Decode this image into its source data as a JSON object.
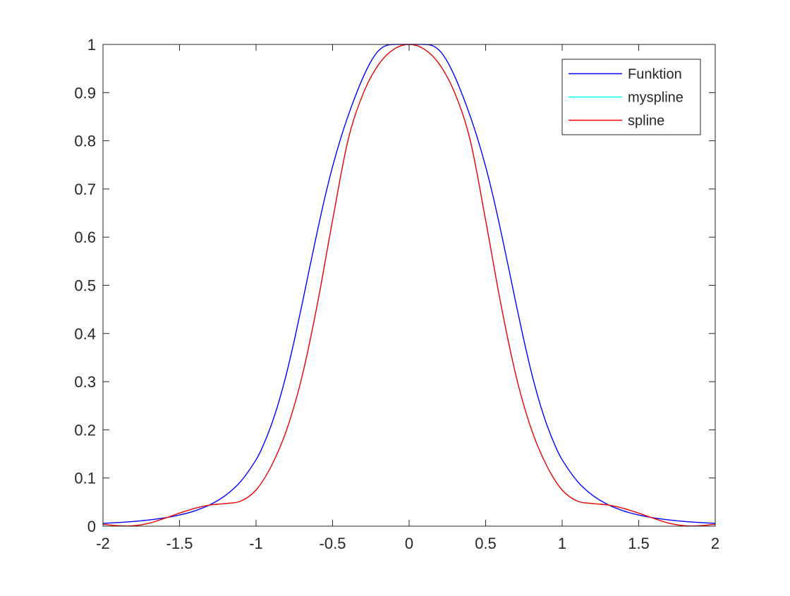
{
  "chart_data": {
    "type": "line",
    "title": "",
    "xlabel": "",
    "ylabel": "",
    "xlim": [
      -2,
      2
    ],
    "ylim": [
      0,
      1
    ],
    "grid": false,
    "box": true,
    "legend_position": "top-right",
    "x_ticks": [
      -2,
      -1.5,
      -1,
      -0.5,
      0,
      0.5,
      1,
      1.5,
      2
    ],
    "x_tick_labels": [
      "-2",
      "-1.5",
      "-1",
      "-0.5",
      "0",
      "0.5",
      "1",
      "1.5",
      "2"
    ],
    "y_ticks": [
      0,
      0.1,
      0.2,
      0.3,
      0.4,
      0.5,
      0.6,
      0.7,
      0.8,
      0.9,
      1
    ],
    "y_tick_labels": [
      "0",
      "0.1",
      "0.2",
      "0.3",
      "0.4",
      "0.5",
      "0.6",
      "0.7",
      "0.8",
      "0.9",
      "1"
    ],
    "series": [
      {
        "name": "Funktion",
        "color": "#0000ff",
        "x": [
          -2,
          -1.9,
          -1.8,
          -1.7,
          -1.6,
          -1.5,
          -1.4,
          -1.3,
          -1.2,
          -1.1,
          -1,
          -0.95,
          -0.9,
          -0.85,
          -0.8,
          -0.75,
          -0.7,
          -0.65,
          -0.6,
          -0.55,
          -0.5,
          -0.45,
          -0.4,
          -0.35,
          -0.3,
          -0.25,
          -0.2,
          -0.15,
          -0.1,
          -0.05,
          0,
          0.05,
          0.1,
          0.15,
          0.2,
          0.25,
          0.3,
          0.35,
          0.4,
          0.45,
          0.5,
          0.55,
          0.6,
          0.65,
          0.7,
          0.75,
          0.8,
          0.85,
          0.9,
          0.95,
          1,
          1.1,
          1.2,
          1.3,
          1.4,
          1.5,
          1.6,
          1.7,
          1.8,
          1.9,
          2
        ],
        "y": [
          0.0059,
          0.0076,
          0.0098,
          0.0129,
          0.0171,
          0.0231,
          0.0318,
          0.0446,
          0.0637,
          0.0929,
          0.1379,
          0.1702,
          0.2103,
          0.2594,
          0.3182,
          0.3857,
          0.4596,
          0.5363,
          0.6116,
          0.6828,
          0.7465,
          0.8019,
          0.8504,
          0.8936,
          0.9322,
          0.9643,
          0.9869,
          0.9978,
          1.0,
          1.0,
          1.0,
          1.0,
          1.0,
          0.9978,
          0.9869,
          0.9643,
          0.9322,
          0.8936,
          0.8504,
          0.8019,
          0.7465,
          0.6828,
          0.6116,
          0.5363,
          0.4596,
          0.3857,
          0.3182,
          0.2594,
          0.2103,
          0.1702,
          0.1379,
          0.0929,
          0.0637,
          0.0446,
          0.0318,
          0.0231,
          0.0171,
          0.0129,
          0.0098,
          0.0076,
          0.0059
        ]
      },
      {
        "name": "myspline",
        "color": "#00ffff",
        "x": [
          -2,
          -1.9,
          -1.8,
          -1.7,
          -1.6,
          -1.5,
          -1.4,
          -1.3,
          -1.2,
          -1.1,
          -1,
          -0.9,
          -0.8,
          -0.7,
          -0.6,
          -0.5,
          -0.4,
          -0.3,
          -0.2,
          -0.1,
          0,
          0.1,
          0.2,
          0.3,
          0.4,
          0.5,
          0.6,
          0.7,
          0.8,
          0.9,
          1,
          1.1,
          1.2,
          1.3,
          1.4,
          1.5,
          1.6,
          1.7,
          1.8,
          1.9,
          2
        ],
        "y": [
          0.004,
          0.001,
          0.001,
          0.006,
          0.016,
          0.027,
          0.037,
          0.044,
          0.047,
          0.052,
          0.075,
          0.125,
          0.2,
          0.31,
          0.46,
          0.635,
          0.8,
          0.898,
          0.958,
          0.99,
          1.0,
          0.99,
          0.958,
          0.898,
          0.8,
          0.635,
          0.46,
          0.31,
          0.2,
          0.125,
          0.075,
          0.052,
          0.047,
          0.044,
          0.037,
          0.027,
          0.016,
          0.006,
          0.001,
          0.001,
          0.004
        ]
      },
      {
        "name": "spline",
        "color": "#ff0000",
        "x": [
          -2,
          -1.9,
          -1.8,
          -1.7,
          -1.6,
          -1.5,
          -1.4,
          -1.3,
          -1.2,
          -1.1,
          -1,
          -0.9,
          -0.8,
          -0.7,
          -0.6,
          -0.5,
          -0.4,
          -0.3,
          -0.2,
          -0.1,
          0,
          0.1,
          0.2,
          0.3,
          0.4,
          0.5,
          0.6,
          0.7,
          0.8,
          0.9,
          1,
          1.1,
          1.2,
          1.3,
          1.4,
          1.5,
          1.6,
          1.7,
          1.8,
          1.9,
          2
        ],
        "y": [
          0.004,
          0.001,
          0.001,
          0.006,
          0.016,
          0.027,
          0.037,
          0.044,
          0.047,
          0.052,
          0.075,
          0.125,
          0.2,
          0.31,
          0.46,
          0.635,
          0.8,
          0.898,
          0.958,
          0.99,
          1.0,
          0.99,
          0.958,
          0.898,
          0.8,
          0.635,
          0.46,
          0.31,
          0.2,
          0.125,
          0.075,
          0.052,
          0.047,
          0.044,
          0.037,
          0.027,
          0.016,
          0.006,
          0.001,
          0.001,
          0.004
        ]
      }
    ]
  }
}
